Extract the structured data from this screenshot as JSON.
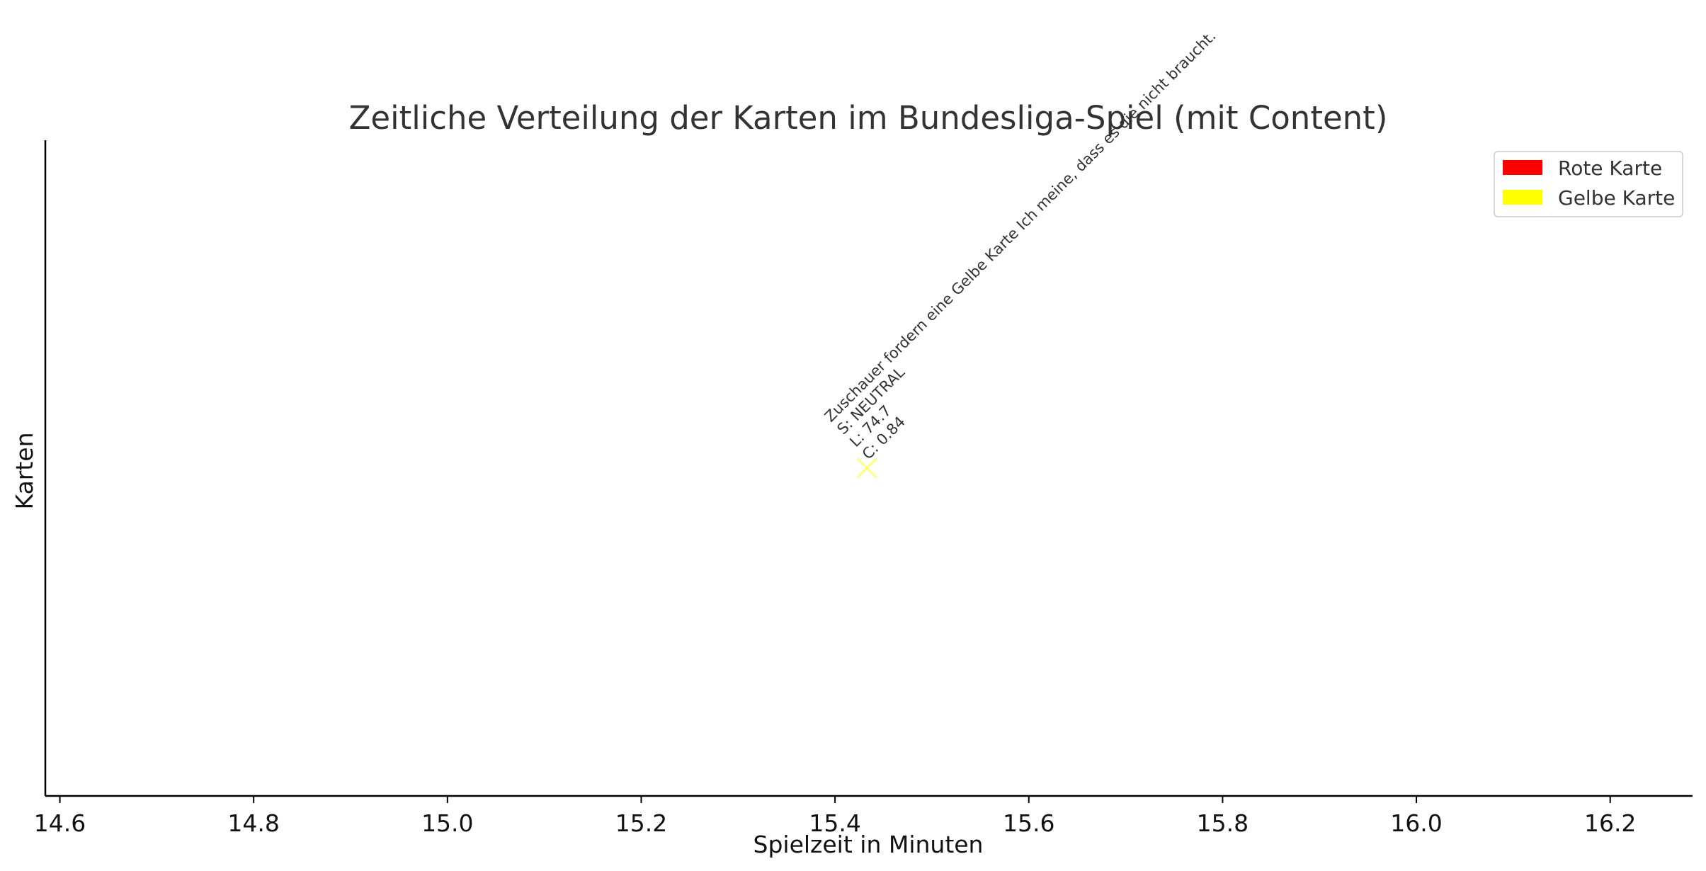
{
  "chart_data": {
    "type": "scatter",
    "title": "Zeitliche Verteilung der Karten im Bundesliga-Spiel (mit Content)",
    "xlabel": "Spielzeit in Minuten",
    "ylabel": "Karten",
    "xlim": [
      14.585,
      16.285
    ],
    "xticks": [
      "14.6",
      "14.8",
      "15.0",
      "15.2",
      "15.4",
      "15.6",
      "15.8",
      "16.0",
      "16.2"
    ],
    "grid": false,
    "legend_position": "top-right",
    "legend": [
      {
        "label": "Rote Karte",
        "color": "#ff0000"
      },
      {
        "label": "Gelbe Karte",
        "color": "#ffff00"
      }
    ],
    "points": [
      {
        "x": 15.433,
        "card": "Gelbe Karte",
        "marker": "x",
        "color": "#ffff80",
        "annotation": [
          "Zuschauer fordern eine Gelbe Karte Ich meine, dass es die nicht braucht.",
          "S: NEUTRAL",
          "L: 74.7",
          "C: 0.84"
        ]
      }
    ]
  }
}
